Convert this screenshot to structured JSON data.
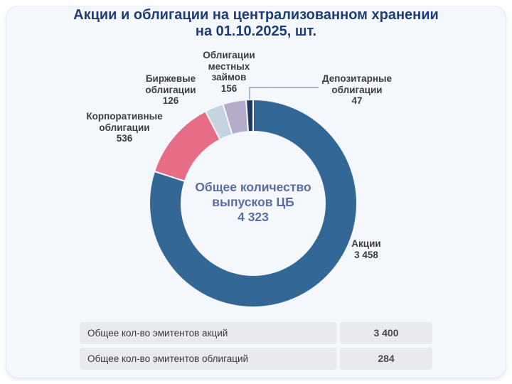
{
  "title": {
    "line1": "Акции и облигации на централизованном хранении",
    "line2": "на 01.10.2025, шт."
  },
  "donut_center": {
    "label": "Общее количество\nвыпусков ЦБ",
    "value": "4 323"
  },
  "callouts": {
    "municipal": {
      "label": "Облигации\nместных\nзаймов",
      "value": "156"
    },
    "exchange": {
      "label": "Биржевые\nоблигации",
      "value": "126"
    },
    "corporate": {
      "label": "Корпоративные\nоблигации",
      "value": "536"
    },
    "depositary": {
      "label": "Депозитарные\nоблигации",
      "value": "47"
    },
    "shares": {
      "label": "Акции",
      "value": "3 458"
    }
  },
  "table": {
    "rows": [
      {
        "label": "Общее кол-во эмитентов акций",
        "value": "3 400"
      },
      {
        "label": "Общее кол-во эмитентов облигаций",
        "value": "284"
      }
    ]
  },
  "colors": {
    "card_background": "#f4f7fb",
    "title_text": "#1f3d74",
    "center_text": "#5b6da0",
    "callout_text": "#3d3d3d",
    "leader_line": "#7e91a8"
  },
  "chart_data": {
    "type": "pie",
    "subtype": "donut",
    "title": "Акции и облигации на централизованном хранении на 01.10.2025, шт.",
    "center_label": "Общее количество выпусков ЦБ",
    "center_value": 4323,
    "total": 4323,
    "legend_position": "callouts-around-donut",
    "segments": [
      {
        "id": "shares",
        "label": "Акции",
        "value": 3458,
        "color": "#336896"
      },
      {
        "id": "corporate",
        "label": "Корпоративные облигации",
        "value": 536,
        "color": "#e76c86"
      },
      {
        "id": "exchange",
        "label": "Биржевые облигации",
        "value": 126,
        "color": "#c5d5e0"
      },
      {
        "id": "municipal",
        "label": "Облигации местных займов",
        "value": 156,
        "color": "#b5accb"
      },
      {
        "id": "depositary",
        "label": "Депозитарные облигации",
        "value": 47,
        "color": "#20395e"
      }
    ],
    "table_rows": [
      {
        "label": "Общее кол-во эмитентов акций",
        "value": 3400
      },
      {
        "label": "Общее кол-во эмитентов облигаций",
        "value": 284
      }
    ]
  }
}
